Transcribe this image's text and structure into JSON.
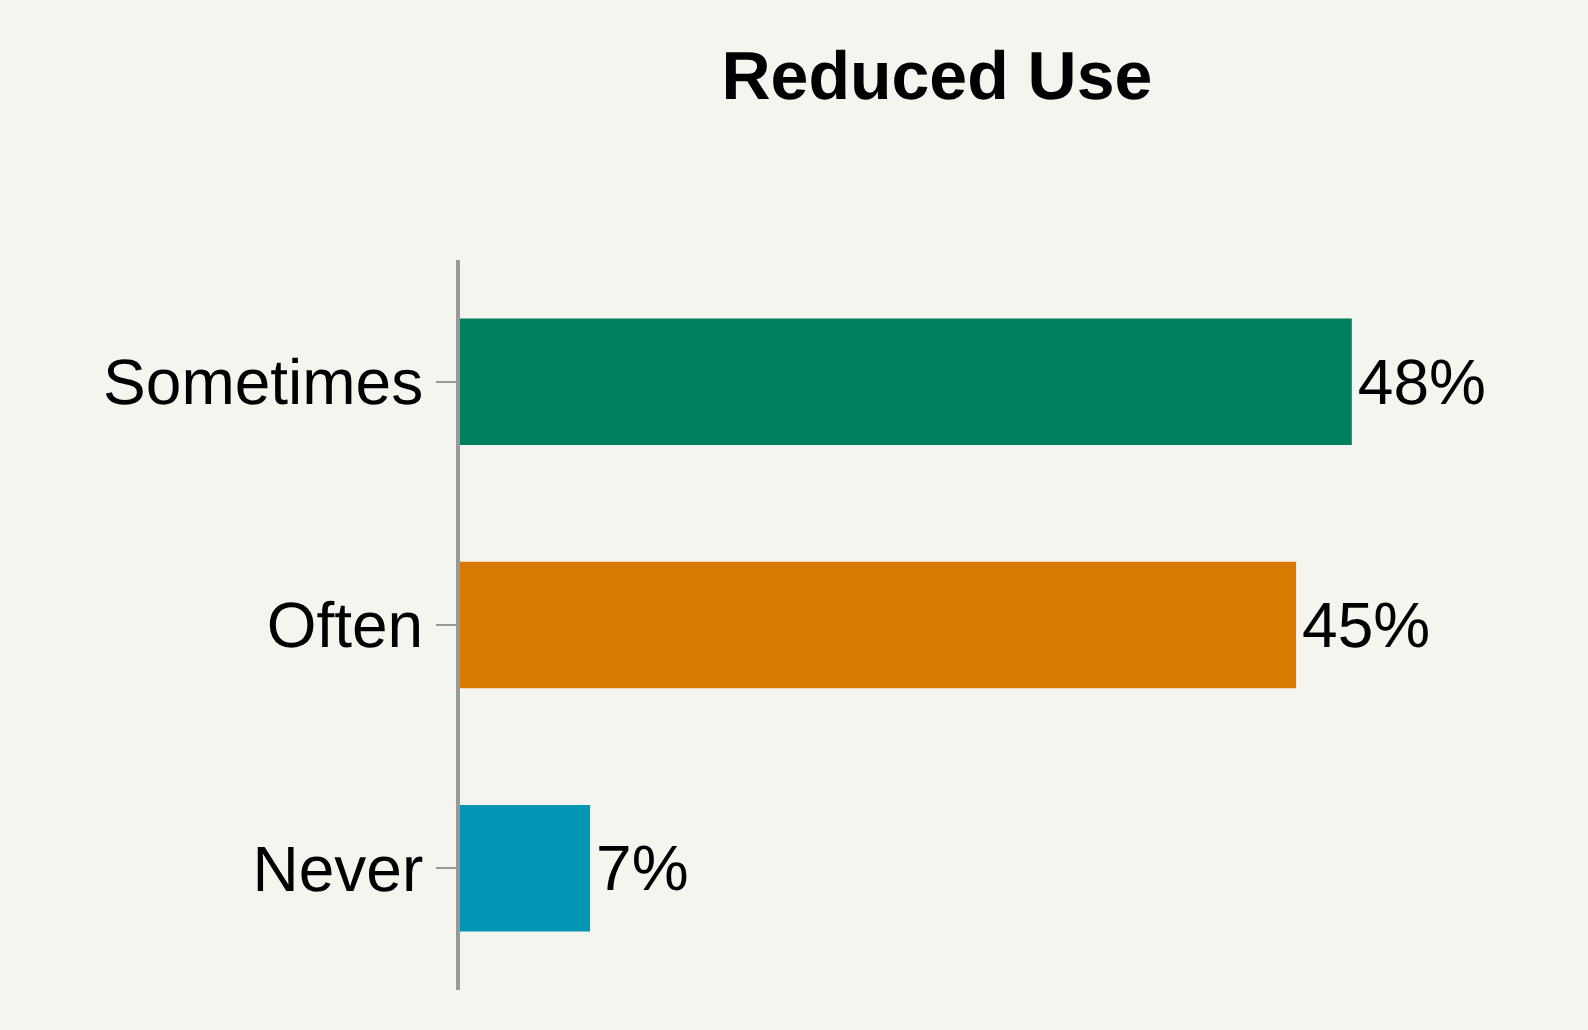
{
  "chart_data": {
    "type": "bar",
    "title": "Reduced Use",
    "orientation": "horizontal",
    "categories": [
      "Sometimes",
      "Often",
      "Never"
    ],
    "values": [
      48,
      45,
      7
    ],
    "colors": [
      "#007f5f",
      "#d97a00",
      "#0096b4"
    ],
    "value_labels": [
      "48%",
      "45%",
      "7%"
    ],
    "grid": false,
    "legend": false
  }
}
